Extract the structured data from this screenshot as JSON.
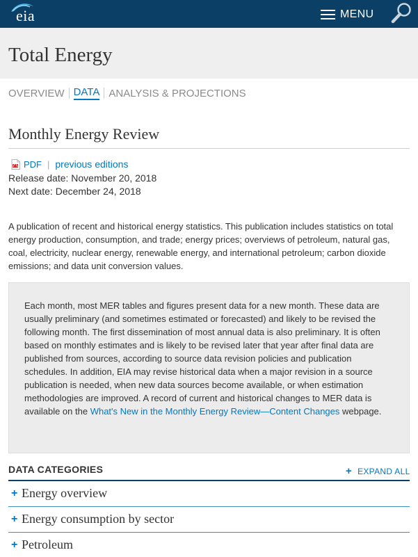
{
  "header": {
    "logo_text": "eia",
    "menu_label": "MENU",
    "colors": {
      "bar": "#0b3f66",
      "link": "#0078c1"
    }
  },
  "page_title": "Total Energy",
  "subnav": {
    "items": [
      {
        "label": "OVERVIEW",
        "active": false
      },
      {
        "label": "DATA",
        "active": true
      },
      {
        "label": "ANALYSIS & PROJECTIONS",
        "active": false
      }
    ]
  },
  "publication": {
    "title": "Monthly Energy Review",
    "pdf_label": "PDF",
    "previous_label": "previous editions",
    "release_date": "Release date: November 20, 2018",
    "next_date": "Next date: December 24, 2018",
    "intro": "A publication of recent and historical energy statistics. This publication includes statistics on total energy production, consumption, and trade; energy prices; overviews of petroleum, natural gas, coal, electricity, nuclear energy, renewable energy, and international petroleum; carbon dioxide emissions; and data unit conversion values."
  },
  "notice": {
    "text": "Each month, most MER tables and figures present data for a new month. These data are usually preliminary (and sometimes estimated or forecasted) and likely to be revised the following month. The first dissemination of most annual data is also preliminary. It is often based on monthly estimates and is likely to be revised later that year after final data are published from sources, according to source data revision policies and publication schedules. In addition, EIA may revise historical data when a major revision in a source publication is needed, when new data sources become available, or when estimation methodologies are improved. A record of current and historical changes to MER data is available on the ",
    "link": "What's New in the Monthly Energy Review—Content Changes",
    "suffix": " webpage."
  },
  "categories": {
    "heading": "DATA CATEGORIES",
    "expand_label": "EXPAND ALL",
    "items": [
      {
        "label": "Energy overview"
      },
      {
        "label": "Energy consumption by sector"
      },
      {
        "label": "Petroleum"
      }
    ]
  }
}
